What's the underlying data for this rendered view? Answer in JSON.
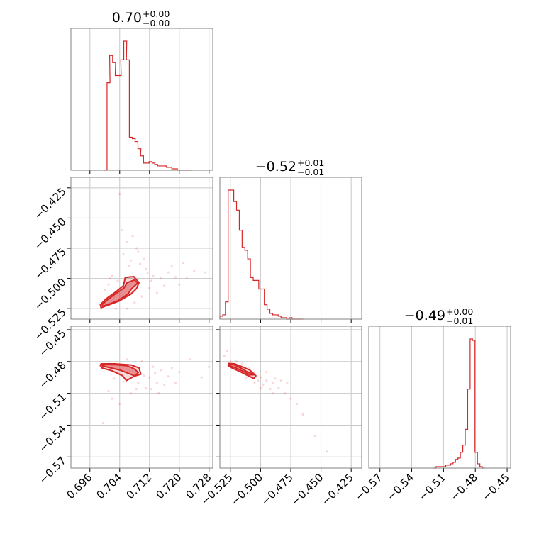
{
  "chart_data": {
    "type": "corner",
    "colors": {
      "accent": "#d62728",
      "frame": "#808080",
      "grid": "#c8c8c8"
    },
    "grid": true,
    "parameters": [
      {
        "title_value": "0.70",
        "err_plus": "+0.00",
        "err_minus": "−0.00",
        "range": [
          0.6909,
          0.729
        ],
        "ticks": [
          0.696,
          0.704,
          0.712,
          0.72,
          0.728
        ],
        "tick_labels": [
          "0.696",
          "0.704",
          "0.712",
          "0.720",
          "0.728"
        ],
        "histogram": {
          "x": [
            0.6998,
            0.7006,
            0.7013,
            0.7021,
            0.7028,
            0.7036,
            0.7043,
            0.7051,
            0.7058,
            0.7066,
            0.7074,
            0.7081,
            0.7089,
            0.7096,
            0.7104,
            0.7112,
            0.7119,
            0.7127,
            0.7134,
            0.7142,
            0.7149,
            0.7157,
            0.7165,
            0.7172,
            0.718,
            0.7187,
            0.7195,
            0.7203,
            0.721,
            0.7218,
            0.7226
          ],
          "counts": [
            0,
            61,
            80,
            75,
            66,
            66,
            77,
            90,
            77,
            23,
            22,
            20,
            15,
            10,
            5,
            5,
            6,
            5,
            4,
            3,
            3,
            3,
            2,
            2,
            1,
            1,
            0,
            0,
            0,
            0,
            0
          ]
        }
      },
      {
        "title_value": "−0.52",
        "err_plus": "+0.01",
        "err_minus": "−0.01",
        "range": [
          -0.5337,
          -0.4163
        ],
        "ticks": [
          -0.525,
          -0.5,
          -0.475,
          -0.45,
          -0.425
        ],
        "tick_labels": [
          "−0.525",
          "−0.500",
          "−0.475",
          "−0.450",
          "−0.425"
        ],
        "histogram": {
          "x": [
            -0.5337,
            -0.5314,
            -0.5291,
            -0.5268,
            -0.5245,
            -0.5222,
            -0.5199,
            -0.5176,
            -0.5153,
            -0.513,
            -0.5107,
            -0.5084,
            -0.5061,
            -0.5038,
            -0.5015,
            -0.4992,
            -0.4969,
            -0.4946,
            -0.4923,
            -0.49,
            -0.4877,
            -0.4854,
            -0.4831,
            -0.4808,
            -0.4785,
            -0.4762,
            -0.4739,
            -0.4716,
            -0.4693,
            -0.467
          ],
          "counts": [
            2,
            3,
            12,
            90,
            90,
            82,
            76,
            62,
            50,
            48,
            42,
            29,
            27,
            27,
            21,
            21,
            10,
            7,
            4,
            3,
            3,
            2,
            1,
            1,
            0,
            1,
            0,
            0,
            0,
            0
          ]
        }
      },
      {
        "title_value": "−0.49",
        "err_plus": "+0.00",
        "err_minus": "−0.01",
        "range": [
          -0.5805,
          -0.4467
        ],
        "ticks": [
          -0.57,
          -0.54,
          -0.51,
          -0.48,
          -0.45
        ],
        "tick_labels": [
          "−0.57",
          "−0.54",
          "−0.51",
          "−0.48",
          "−0.45"
        ],
        "histogram": {
          "x": [
            -0.5194,
            -0.5171,
            -0.5148,
            -0.5125,
            -0.5102,
            -0.5079,
            -0.5056,
            -0.5033,
            -0.501,
            -0.4987,
            -0.4964,
            -0.4941,
            -0.4918,
            -0.4895,
            -0.4872,
            -0.4849,
            -0.4826,
            -0.4803,
            -0.478,
            -0.4757,
            -0.4734
          ],
          "counts": [
            0,
            1,
            1,
            1,
            1,
            2,
            2,
            3,
            4,
            6,
            7,
            11,
            16,
            27,
            55,
            90,
            89,
            11,
            3,
            1,
            0
          ]
        }
      }
    ],
    "pairs": [
      {
        "x_param": 0,
        "y_param": 1,
        "contours": [
          [
            [
              0.6994,
              -0.523
            ],
            [
              0.701,
              -0.5215
            ],
            [
              0.7035,
              -0.5185
            ],
            [
              0.7062,
              -0.513
            ],
            [
              0.7072,
              -0.5085
            ],
            [
              0.7088,
              -0.504
            ],
            [
              0.708,
              -0.5012
            ],
            [
              0.706,
              -0.5035
            ],
            [
              0.7052,
              -0.5078
            ],
            [
              0.7028,
              -0.5128
            ],
            [
              0.7005,
              -0.5182
            ],
            [
              0.6993,
              -0.5215
            ]
          ],
          [
            [
              0.699,
              -0.5242
            ],
            [
              0.701,
              -0.522
            ],
            [
              0.7038,
              -0.5188
            ],
            [
              0.707,
              -0.513
            ],
            [
              0.7085,
              -0.5085
            ],
            [
              0.7092,
              -0.5035
            ],
            [
              0.7078,
              -0.4985
            ],
            [
              0.7055,
              -0.4992
            ],
            [
              0.705,
              -0.506
            ],
            [
              0.703,
              -0.511
            ],
            [
              0.7003,
              -0.517
            ],
            [
              0.6988,
              -0.5218
            ]
          ]
        ],
        "points": [
          [
            0.705,
            -0.48
          ],
          [
            0.707,
            -0.485
          ],
          [
            0.709,
            -0.478
          ],
          [
            0.711,
            -0.492
          ],
          [
            0.713,
            -0.498
          ],
          [
            0.715,
            -0.5
          ],
          [
            0.717,
            -0.495
          ],
          [
            0.702,
            -0.498
          ],
          [
            0.701,
            -0.505
          ],
          [
            0.7,
            -0.51
          ],
          [
            0.706,
            -0.47
          ],
          [
            0.704,
            -0.43
          ],
          [
            0.7045,
            -0.46
          ],
          [
            0.71,
            -0.515
          ],
          [
            0.712,
            -0.508
          ],
          [
            0.714,
            -0.512
          ],
          [
            0.718,
            -0.49
          ],
          [
            0.72,
            -0.505
          ],
          [
            0.722,
            -0.5
          ],
          [
            0.724,
            -0.494
          ],
          [
            0.708,
            -0.52
          ],
          [
            0.706,
            -0.525
          ],
          [
            0.703,
            -0.525
          ],
          [
            0.7,
            -0.52
          ],
          [
            0.7095,
            -0.488
          ],
          [
            0.7105,
            -0.484
          ],
          [
            0.7115,
            -0.496
          ],
          [
            0.7125,
            -0.502
          ],
          [
            0.7065,
            -0.49
          ],
          [
            0.7035,
            -0.502
          ],
          [
            0.7025,
            -0.515
          ],
          [
            0.7015,
            -0.5
          ],
          [
            0.7085,
            -0.475
          ],
          [
            0.7075,
            -0.465
          ],
          [
            0.716,
            -0.506
          ],
          [
            0.719,
            -0.499
          ],
          [
            0.721,
            -0.487
          ],
          [
            0.727,
            -0.495
          ]
        ]
      },
      {
        "x_param": 0,
        "y_param": 2,
        "contours": [
          [
            [
              0.6995,
              -0.4828
            ],
            [
              0.703,
              -0.483
            ],
            [
              0.706,
              -0.484
            ],
            [
              0.708,
              -0.487
            ],
            [
              0.709,
              -0.4905
            ],
            [
              0.708,
              -0.4935
            ],
            [
              0.7062,
              -0.491
            ],
            [
              0.704,
              -0.488
            ],
            [
              0.701,
              -0.4855
            ],
            [
              0.6993,
              -0.484
            ]
          ],
          [
            [
              0.699,
              -0.4822
            ],
            [
              0.703,
              -0.4822
            ],
            [
              0.707,
              -0.4832
            ],
            [
              0.7092,
              -0.486
            ],
            [
              0.7097,
              -0.492
            ],
            [
              0.7078,
              -0.494
            ],
            [
              0.7058,
              -0.498
            ],
            [
              0.7048,
              -0.4935
            ],
            [
              0.702,
              -0.4888
            ],
            [
              0.6992,
              -0.486
            ],
            [
              0.6988,
              -0.4838
            ]
          ]
        ],
        "points": [
          [
            0.706,
            -0.478
          ],
          [
            0.71,
            -0.48
          ],
          [
            0.713,
            -0.485
          ],
          [
            0.715,
            -0.488
          ],
          [
            0.718,
            -0.486
          ],
          [
            0.712,
            -0.495
          ],
          [
            0.714,
            -0.5
          ],
          [
            0.716,
            -0.502
          ],
          [
            0.711,
            -0.505
          ],
          [
            0.709,
            -0.5
          ],
          [
            0.707,
            -0.51
          ],
          [
            0.704,
            -0.52
          ],
          [
            0.702,
            -0.515
          ],
          [
            0.701,
            -0.508
          ],
          [
            0.72,
            -0.49
          ],
          [
            0.723,
            -0.478
          ],
          [
            0.726,
            -0.495
          ],
          [
            0.728,
            -0.485
          ],
          [
            0.6995,
            -0.538
          ],
          [
            0.717,
            -0.494
          ],
          [
            0.7135,
            -0.491
          ],
          [
            0.7105,
            -0.4935
          ],
          [
            0.705,
            -0.499
          ],
          [
            0.7025,
            -0.496
          ],
          [
            0.7085,
            -0.506
          ],
          [
            0.7125,
            -0.506
          ],
          [
            0.7145,
            -0.51
          ],
          [
            0.719,
            -0.5
          ]
        ]
      },
      {
        "x_param": 1,
        "y_param": 2,
        "contours": [
          [
            [
              -0.5258,
              -0.4825
            ],
            [
              -0.522,
              -0.483
            ],
            [
              -0.516,
              -0.4862
            ],
            [
              -0.5115,
              -0.4895
            ],
            [
              -0.505,
              -0.4925
            ],
            [
              -0.509,
              -0.4925
            ],
            [
              -0.515,
              -0.489
            ],
            [
              -0.521,
              -0.4858
            ],
            [
              -0.5255,
              -0.484
            ]
          ],
          [
            [
              -0.5265,
              -0.4818
            ],
            [
              -0.5215,
              -0.4822
            ],
            [
              -0.515,
              -0.485
            ],
            [
              -0.509,
              -0.488
            ],
            [
              -0.5038,
              -0.4935
            ],
            [
              -0.5055,
              -0.496
            ],
            [
              -0.511,
              -0.493
            ],
            [
              -0.517,
              -0.4895
            ],
            [
              -0.5235,
              -0.4862
            ],
            [
              -0.5268,
              -0.4838
            ]
          ]
        ],
        "points": [
          [
            -0.525,
            -0.48
          ],
          [
            -0.53,
            -0.475
          ],
          [
            -0.528,
            -0.47
          ],
          [
            -0.52,
            -0.48
          ],
          [
            -0.515,
            -0.482
          ],
          [
            -0.51,
            -0.486
          ],
          [
            -0.505,
            -0.49
          ],
          [
            -0.5,
            -0.495
          ],
          [
            -0.495,
            -0.498
          ],
          [
            -0.49,
            -0.5
          ],
          [
            -0.485,
            -0.505
          ],
          [
            -0.48,
            -0.51
          ],
          [
            -0.475,
            -0.515
          ],
          [
            -0.47,
            -0.52
          ],
          [
            -0.465,
            -0.53
          ],
          [
            -0.455,
            -0.55
          ],
          [
            -0.445,
            -0.565
          ],
          [
            -0.495,
            -0.49
          ],
          [
            -0.505,
            -0.5
          ],
          [
            -0.5,
            -0.505
          ],
          [
            -0.49,
            -0.51
          ],
          [
            -0.512,
            -0.495
          ],
          [
            -0.478,
            -0.5
          ],
          [
            -0.483,
            -0.498
          ],
          [
            -0.488,
            -0.496
          ],
          [
            -0.498,
            -0.502
          ],
          [
            -0.502,
            -0.498
          ],
          [
            -0.492,
            -0.506
          ]
        ]
      }
    ]
  }
}
